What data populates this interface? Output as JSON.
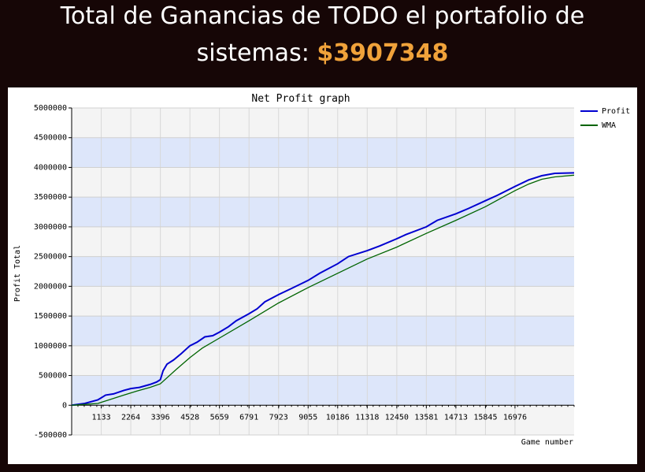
{
  "header": {
    "title_line1": "Total de Ganancias de TODO el portafolio de",
    "title_line2_prefix": "sistemas: ",
    "total_amount": "$3907348",
    "amount_color": "#f0a23a"
  },
  "chart_data": {
    "type": "line",
    "title": "Net Profit graph",
    "xlabel": "Game number",
    "ylabel": "Profit Total",
    "xlim": [
      0,
      19240
    ],
    "ylim": [
      -500000,
      5000000
    ],
    "x_ticks": [
      1133,
      2264,
      3396,
      4528,
      5659,
      6791,
      7923,
      9055,
      10186,
      11318,
      12450,
      13581,
      14713,
      15845,
      16976
    ],
    "y_ticks": [
      -500000,
      0,
      500000,
      1000000,
      1500000,
      2000000,
      2500000,
      3000000,
      3500000,
      4000000,
      4500000,
      5000000
    ],
    "grid": true,
    "legend_position": "top-right",
    "series": [
      {
        "name": "Profit",
        "color": "#0000d0",
        "x": [
          0,
          500,
          1000,
          1300,
          1600,
          2000,
          2264,
          2600,
          3000,
          3250,
          3396,
          3500,
          3650,
          3900,
          4200,
          4528,
          4800,
          5100,
          5400,
          5659,
          6000,
          6300,
          6791,
          7100,
          7400,
          7923,
          8400,
          9055,
          9500,
          10186,
          10600,
          11318,
          11800,
          12450,
          12800,
          13581,
          14000,
          14713,
          15200,
          15845,
          16300,
          16976,
          17500,
          18000,
          18500,
          19240
        ],
        "y": [
          0,
          30000,
          90000,
          170000,
          190000,
          250000,
          280000,
          300000,
          350000,
          390000,
          430000,
          580000,
          690000,
          760000,
          870000,
          1000000,
          1060000,
          1150000,
          1170000,
          1230000,
          1320000,
          1420000,
          1540000,
          1620000,
          1740000,
          1860000,
          1960000,
          2100000,
          2220000,
          2380000,
          2500000,
          2600000,
          2680000,
          2800000,
          2870000,
          3000000,
          3110000,
          3220000,
          3310000,
          3440000,
          3530000,
          3680000,
          3790000,
          3860000,
          3900000,
          3907348
        ]
      },
      {
        "name": "WMA",
        "color": "#006400",
        "x": [
          0,
          1000,
          2000,
          2500,
          3000,
          3396,
          4000,
          4528,
          5000,
          5659,
          6791,
          7923,
          9055,
          10186,
          11318,
          12450,
          13581,
          14713,
          15845,
          16976,
          17500,
          18000,
          18500,
          19240
        ],
        "y": [
          0,
          30000,
          170000,
          240000,
          300000,
          360000,
          600000,
          800000,
          960000,
          1130000,
          1420000,
          1720000,
          1980000,
          2220000,
          2460000,
          2660000,
          2890000,
          3110000,
          3340000,
          3610000,
          3720000,
          3800000,
          3840000,
          3870000
        ]
      }
    ]
  }
}
